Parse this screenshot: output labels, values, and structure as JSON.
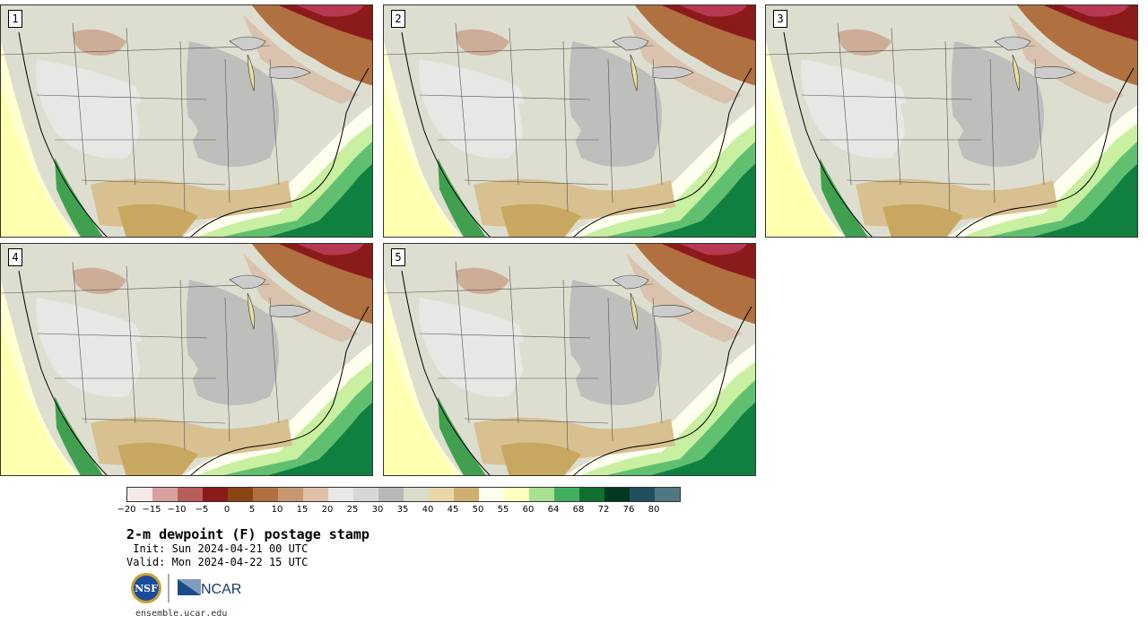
{
  "panels": [
    {
      "label": "1"
    },
    {
      "label": "2"
    },
    {
      "label": "3"
    },
    {
      "label": "4"
    },
    {
      "label": "5"
    }
  ],
  "colorbar": {
    "colors": [
      "#f6e9e9",
      "#d9a0a0",
      "#b85c5c",
      "#8b1a1a",
      "#8b4513",
      "#b07040",
      "#c89870",
      "#e0c0a8",
      "#e8e8e8",
      "#d8d8d8",
      "#b8b8b8",
      "#dcdccc",
      "#e8d8a8",
      "#d0b070",
      "#fffff0",
      "#ffffc0",
      "#a8e090",
      "#40b060",
      "#107030",
      "#003820",
      "#205060",
      "#507880"
    ],
    "ticks": [
      "−20",
      "−15",
      "−10",
      "−5",
      "0",
      "5",
      "10",
      "15",
      "20",
      "25",
      "30",
      "35",
      "40",
      "45",
      "50",
      "55",
      "60",
      "64",
      "68",
      "72",
      "76",
      "80"
    ]
  },
  "title": "2-m dewpoint (F) postage stamp",
  "init": " Init: Sun 2024-04-21 00 UTC",
  "valid": "Valid: Mon 2024-04-22 15 UTC",
  "logos": {
    "nsf": "NSF",
    "ncar": "NCAR"
  },
  "footer": "ensemble.ucar.edu"
}
